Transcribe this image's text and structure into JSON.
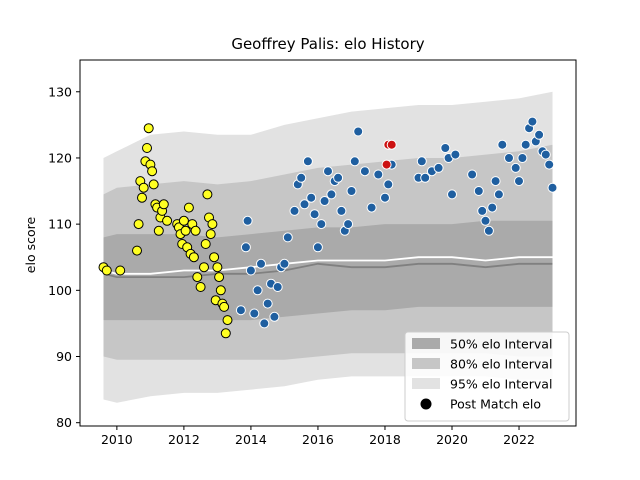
{
  "chart_data": {
    "type": "scatter",
    "title": "Geoffrey Palis: elo History",
    "xlabel": "",
    "ylabel": "elo score",
    "xlim": [
      2008.9,
      2023.7
    ],
    "ylim": [
      79.5,
      134.8
    ],
    "x_ticks": [
      2010,
      2012,
      2014,
      2016,
      2018,
      2020,
      2022
    ],
    "y_ticks": [
      80,
      90,
      100,
      110,
      120,
      130
    ],
    "grid": false,
    "legend_placement": "lower-right",
    "legend": [
      {
        "label": "50% elo Interval",
        "color": "#aaaaaa"
      },
      {
        "label": "80% elo Interval",
        "color": "#c6c6c6"
      },
      {
        "label": "95% elo Interval",
        "color": "#e2e2e2"
      },
      {
        "label": "Post Match elo",
        "color": "#000000"
      }
    ],
    "bands": {
      "x": [
        2009.6,
        2010.0,
        2011.0,
        2012.0,
        2013.0,
        2014.0,
        2015.0,
        2016.0,
        2017.0,
        2018.0,
        2019.0,
        2020.0,
        2021.0,
        2022.0,
        2023.0
      ],
      "p95_upper": [
        120.0,
        121.0,
        123.5,
        124.0,
        123.5,
        123.5,
        125.0,
        126.0,
        127.0,
        127.5,
        128.0,
        128.0,
        128.5,
        129.0,
        130.0
      ],
      "p80_upper": [
        114.5,
        115.5,
        116.0,
        116.5,
        116.0,
        116.5,
        117.5,
        118.5,
        119.0,
        119.5,
        120.0,
        120.0,
        120.5,
        121.0,
        122.0
      ],
      "p50_upper": [
        108.0,
        108.5,
        108.5,
        108.5,
        108.0,
        108.5,
        109.0,
        109.5,
        109.5,
        110.0,
        110.0,
        110.0,
        110.5,
        110.5,
        110.5
      ],
      "p50_lower": [
        95.5,
        95.5,
        95.5,
        95.5,
        95.5,
        95.5,
        96.0,
        96.5,
        97.0,
        97.0,
        97.5,
        97.5,
        97.5,
        97.5,
        97.5
      ],
      "p80_lower": [
        90.0,
        89.5,
        89.5,
        89.5,
        89.5,
        89.5,
        89.5,
        90.0,
        90.5,
        90.5,
        90.5,
        90.5,
        90.5,
        90.0,
        90.0
      ],
      "p95_lower": [
        83.5,
        83.0,
        84.0,
        84.5,
        84.5,
        85.0,
        85.5,
        86.5,
        87.0,
        87.0,
        87.0,
        87.0,
        87.0,
        86.5,
        86.5
      ]
    },
    "series": [
      {
        "color": "#808080",
        "kind": "line",
        "x": [
          2009.6,
          2010.0,
          2011.0,
          2012.0,
          2013.0,
          2014.0,
          2015.0,
          2016.0,
          2017.0,
          2018.0,
          2019.0,
          2020.0,
          2021.0,
          2022.0,
          2023.0
        ],
        "y": [
          102.5,
          102.0,
          102.0,
          102.0,
          102.5,
          102.5,
          103.0,
          104.0,
          103.5,
          103.5,
          104.0,
          104.0,
          103.5,
          104.0,
          104.0
        ]
      },
      {
        "color": "#ffffff",
        "kind": "line",
        "x": [
          2009.6,
          2010.0,
          2011.0,
          2012.0,
          2013.0,
          2014.0,
          2015.0,
          2016.0,
          2017.0,
          2018.0,
          2019.0,
          2020.0,
          2021.0,
          2022.0,
          2023.0
        ],
        "y": [
          103.0,
          102.5,
          102.5,
          103.0,
          103.0,
          103.5,
          104.0,
          104.5,
          104.5,
          104.5,
          105.0,
          105.0,
          104.5,
          105.0,
          105.0
        ]
      },
      {
        "color": "#ffff22",
        "kind": "points",
        "x": [
          2009.6,
          2009.7,
          2010.1,
          2010.6,
          2010.65,
          2010.7,
          2010.75,
          2010.8,
          2010.85,
          2010.9,
          2010.95,
          2011.0,
          2011.05,
          2011.1,
          2011.15,
          2011.2,
          2011.25,
          2011.3,
          2011.35,
          2011.4,
          2011.5,
          2011.8,
          2011.85,
          2011.9,
          2011.95,
          2012.0,
          2012.05,
          2012.1,
          2012.15,
          2012.2,
          2012.25,
          2012.3,
          2012.35,
          2012.4,
          2012.5,
          2012.6,
          2012.65,
          2012.7,
          2012.75,
          2012.8,
          2012.85,
          2012.9,
          2012.95,
          2013.0,
          2013.05,
          2013.1,
          2013.15,
          2013.2,
          2013.25,
          2013.3
        ],
        "y": [
          103.5,
          103.0,
          103.0,
          106.0,
          110.0,
          116.5,
          114.0,
          115.5,
          119.5,
          121.5,
          124.5,
          119.0,
          118.0,
          116.0,
          113.0,
          112.5,
          109.0,
          111.0,
          112.0,
          113.0,
          110.5,
          110.0,
          109.5,
          108.5,
          107.0,
          110.5,
          109.0,
          106.5,
          112.5,
          105.5,
          110.0,
          105.0,
          109.0,
          102.0,
          100.5,
          103.5,
          107.0,
          114.5,
          111.0,
          108.5,
          110.0,
          105.0,
          98.5,
          103.5,
          102.0,
          100.0,
          98.0,
          97.5,
          93.5,
          95.5
        ]
      },
      {
        "color": "#1f5fa0",
        "kind": "points",
        "x": [
          2013.7,
          2013.85,
          2013.9,
          2014.0,
          2014.1,
          2014.2,
          2014.3,
          2014.4,
          2014.5,
          2014.6,
          2014.7,
          2014.8,
          2014.9,
          2015.0,
          2015.1,
          2015.3,
          2015.4,
          2015.5,
          2015.6,
          2015.7,
          2015.8,
          2015.9,
          2016.0,
          2016.1,
          2016.2,
          2016.3,
          2016.4,
          2016.5,
          2016.6,
          2016.7,
          2016.8,
          2016.9,
          2017.0,
          2017.1,
          2017.2,
          2017.4,
          2017.6,
          2017.8,
          2018.0,
          2018.1,
          2018.2,
          2019.0,
          2019.1,
          2019.2,
          2019.4,
          2019.6,
          2019.8,
          2019.9,
          2020.0,
          2020.1,
          2020.6,
          2020.8,
          2020.9,
          2021.0,
          2021.1,
          2021.2,
          2021.3,
          2021.4,
          2021.5,
          2021.7,
          2021.9,
          2022.0,
          2022.1,
          2022.2,
          2022.3,
          2022.4,
          2022.5,
          2022.6,
          2022.7,
          2022.8,
          2022.9,
          2023.0
        ],
        "y": [
          97.0,
          106.5,
          110.5,
          103.0,
          96.5,
          100.0,
          104.0,
          95.0,
          98.0,
          101.0,
          96.0,
          100.5,
          103.5,
          104.0,
          108.0,
          112.0,
          116.0,
          117.0,
          113.0,
          119.5,
          114.0,
          111.5,
          106.5,
          110.0,
          113.5,
          118.0,
          114.5,
          116.5,
          117.0,
          112.0,
          109.0,
          110.0,
          115.0,
          119.5,
          124.0,
          118.0,
          112.5,
          117.5,
          114.0,
          116.0,
          119.0,
          117.0,
          119.5,
          117.0,
          118.0,
          118.5,
          121.5,
          120.0,
          114.5,
          120.5,
          117.5,
          115.0,
          112.0,
          110.5,
          109.0,
          112.5,
          116.5,
          114.5,
          122.0,
          120.0,
          118.5,
          116.5,
          120.0,
          122.0,
          124.5,
          125.5,
          122.5,
          123.5,
          121.0,
          120.5,
          119.0,
          115.5
        ]
      },
      {
        "color": "#cc1111",
        "kind": "points",
        "x": [
          2018.05,
          2018.1,
          2018.2
        ],
        "y": [
          119.0,
          122.0,
          122.0
        ]
      }
    ]
  }
}
